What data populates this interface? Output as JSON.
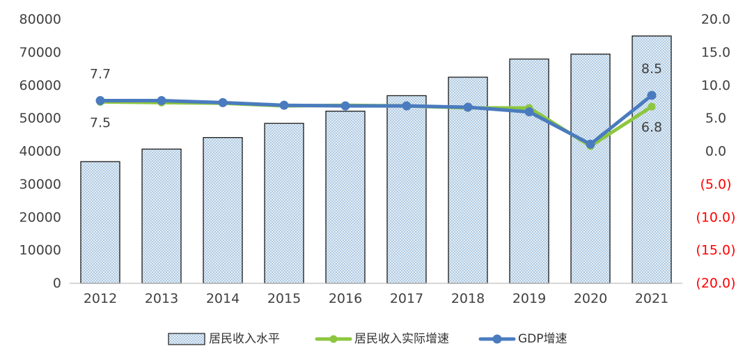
{
  "chart_data": {
    "type": "bar",
    "categories": [
      "2012",
      "2013",
      "2014",
      "2015",
      "2016",
      "2017",
      "2018",
      "2019",
      "2020",
      "2021"
    ],
    "series": [
      {
        "name": "居民收入水平",
        "type": "bar",
        "axis": "left",
        "values": [
          36900,
          40700,
          44200,
          48500,
          52200,
          56900,
          62500,
          68000,
          69500,
          75000
        ]
      },
      {
        "name": "居民收入实际增速",
        "type": "line",
        "axis": "right",
        "color": "#8DC63F",
        "values": [
          7.5,
          7.4,
          7.3,
          6.9,
          7.0,
          6.9,
          6.6,
          6.6,
          0.8,
          6.8
        ]
      },
      {
        "name": "GDP增速",
        "type": "line",
        "axis": "right",
        "color": "#4A7BBF",
        "values": [
          7.7,
          7.7,
          7.4,
          7.0,
          6.9,
          6.9,
          6.7,
          6.0,
          1.1,
          8.5
        ]
      }
    ],
    "y_left": {
      "ylim": [
        0,
        80000
      ],
      "ticks": [
        "0",
        "10000",
        "20000",
        "30000",
        "40000",
        "50000",
        "60000",
        "70000",
        "80000"
      ]
    },
    "y_right": {
      "ylim": [
        -20,
        20
      ],
      "ticks": [
        "(20.0)",
        "(15.0)",
        "(10.0)",
        "(5.0)",
        "0.0",
        "5.0",
        "10.0",
        "15.0",
        "20.0"
      ],
      "negative_color": "#FF0000",
      "positive_color": "#404040"
    },
    "data_labels": [
      {
        "series": "GDP增速",
        "category": "2012",
        "text": "7.7",
        "placement": "above"
      },
      {
        "series": "居民收入实际增速",
        "category": "2012",
        "text": "7.5",
        "placement": "below"
      },
      {
        "series": "GDP增速",
        "category": "2021",
        "text": "8.5",
        "placement": "above"
      },
      {
        "series": "居民收入实际增速",
        "category": "2021",
        "text": "6.8",
        "placement": "below"
      }
    ],
    "legend": {
      "position": "bottom",
      "entries": [
        "居民收入水平",
        "居民收入实际增速",
        "GDP增速"
      ]
    },
    "grid": false,
    "title": "",
    "xlabel": "",
    "ylabel": ""
  }
}
